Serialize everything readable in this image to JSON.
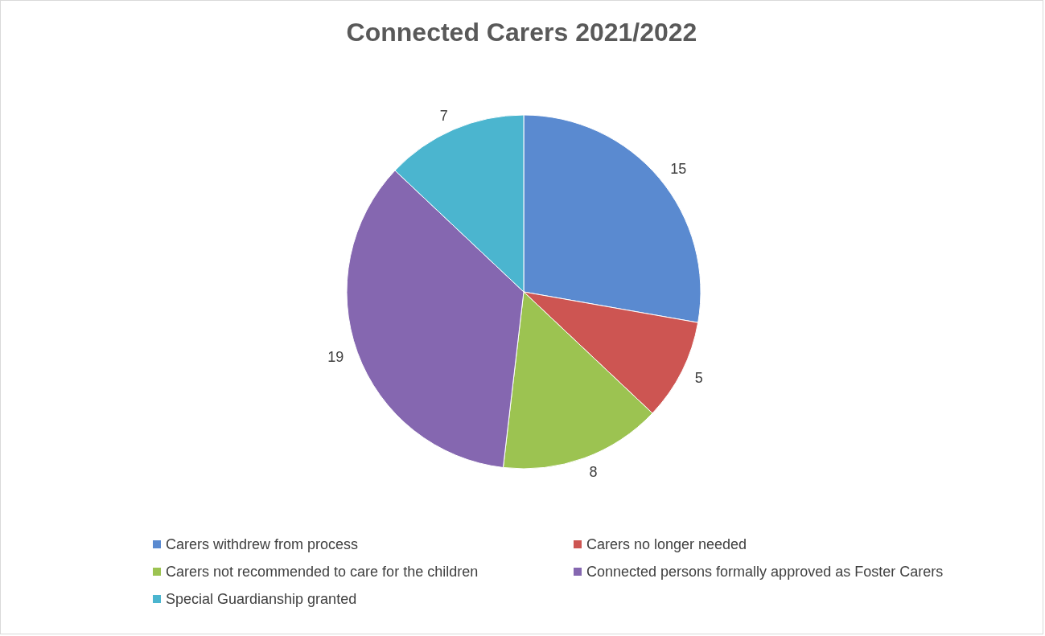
{
  "chart_data": {
    "type": "pie",
    "title": "Connected Carers 2021/2022",
    "categories": [
      "Carers withdrew from process",
      "Carers no longer needed",
      "Carers not recommended to care for the children",
      "Connected persons formally approved as Foster Carers",
      "Special Guardianship granted"
    ],
    "values": [
      15,
      5,
      8,
      19,
      7
    ],
    "colors": [
      "#5a8ad0",
      "#cd5552",
      "#9cc351",
      "#8567b0",
      "#4bb5cf"
    ],
    "data_labels": true,
    "legend": "bottom"
  }
}
